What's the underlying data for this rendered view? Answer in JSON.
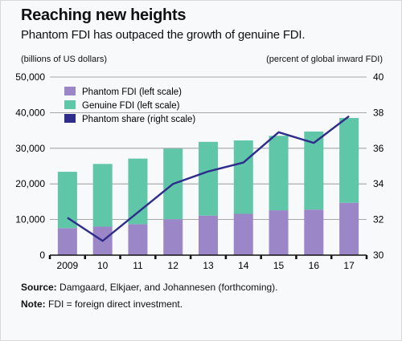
{
  "header": {
    "title": "Reaching new heights",
    "subtitle": "Phantom FDI has outpaced the growth of genuine FDI.",
    "left_unit": "(billions of US dollars)",
    "right_unit": "(percent of global inward FDI)"
  },
  "footer": {
    "source_label": "Source:",
    "source_text": "Damgaard, Elkjaer, and Johannesen (forthcoming).",
    "note_label": "Note:",
    "note_text": "FDI = foreign direct investment."
  },
  "colors": {
    "phantom": "#9b87c8",
    "genuine": "#5fc6a7",
    "share": "#2e2d8c",
    "grid": "#8c8c8c"
  },
  "chart_data": {
    "type": "bar",
    "stacked": true,
    "categories": [
      "2009",
      "10",
      "11",
      "12",
      "13",
      "14",
      "15",
      "16",
      "17"
    ],
    "series": [
      {
        "name": "Phantom FDI (left scale)",
        "axis": "left",
        "kind": "bar",
        "values": [
          7600,
          8000,
          8700,
          10100,
          11100,
          11600,
          12600,
          12800,
          14700
        ]
      },
      {
        "name": "Genuine FDI (left scale)",
        "axis": "left",
        "kind": "bar",
        "values": [
          15800,
          17600,
          18400,
          19800,
          20700,
          20600,
          20900,
          21900,
          23800
        ]
      },
      {
        "name": "Phantom share (right scale)",
        "axis": "right",
        "kind": "line",
        "values": [
          32.1,
          30.8,
          32.4,
          34.0,
          34.7,
          35.2,
          36.9,
          36.3,
          37.8
        ]
      }
    ],
    "left_axis": {
      "min": 0,
      "max": 50000,
      "ticks": [
        0,
        10000,
        20000,
        30000,
        40000,
        50000
      ],
      "tick_labels": [
        "0",
        "10,000",
        "20,000",
        "30,000",
        "40,000",
        "50,000"
      ]
    },
    "right_axis": {
      "min": 30,
      "max": 40,
      "ticks": [
        30,
        32,
        34,
        36,
        38,
        40
      ],
      "tick_labels": [
        "30",
        "32",
        "34",
        "36",
        "38",
        "40"
      ]
    },
    "legend_position": "top-left",
    "grid": true
  }
}
